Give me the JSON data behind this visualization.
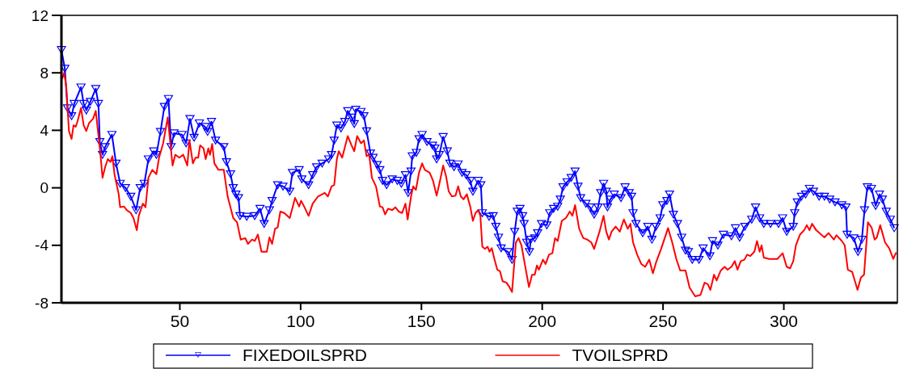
{
  "chart_data": {
    "type": "line",
    "xlim": [
      1,
      347
    ],
    "xticks": [
      50,
      100,
      150,
      200,
      250,
      300
    ],
    "ylim": [
      -8,
      12
    ],
    "yticks": [
      -8,
      -4,
      0,
      4,
      8,
      12
    ],
    "grid": false,
    "legend": "bottom",
    "series": [
      {
        "name": "FIXEDOILSPRD",
        "color": "#0000ff",
        "marker": "triangle",
        "x": [
          1,
          2.4,
          3.5,
          5.2,
          6.3,
          9.1,
          10.2,
          11.3,
          13,
          15.2,
          16.3,
          16.9,
          18,
          19.1,
          21.9,
          23.6,
          25.3,
          27.5,
          29.7,
          31.9,
          33.6,
          35.3,
          37,
          39.2,
          40.3,
          42,
          43.6,
          45.3,
          46.4,
          47.6,
          50.9,
          52.6,
          54.2,
          55.9,
          58.1,
          60.4,
          61.5,
          63.1,
          64.8,
          68.2,
          69.3,
          71,
          72.1,
          73.2,
          74.3,
          74.9,
          77.7,
          81,
          83.2,
          84.9,
          87.1,
          88.2,
          90.5,
          92.7,
          95.5,
          96.6,
          99.4,
          100.5,
          103.3,
          105,
          106.6,
          108.9,
          111.6,
          112.8,
          113.9,
          115,
          116.7,
          118.3,
          119.5,
          121.1,
          122.2,
          122.8,
          125,
          126.2,
          127.3,
          128.9,
          130,
          131.7,
          132.8,
          133.9,
          135.6,
          137.9,
          140,
          141.7,
          143.4,
          144.5,
          145.7,
          146.2,
          147.9,
          149,
          150.3,
          152.3,
          154.6,
          155.6,
          156.3,
          157.4,
          159,
          160.7,
          161.8,
          163.5,
          165.2,
          166.8,
          168.5,
          170.2,
          171.3,
          173.5,
          174.6,
          175.2,
          178,
          179.7,
          180.8,
          181.9,
          183,
          185.8,
          187.5,
          188.6,
          189.7,
          190.8,
          191.9,
          192.5,
          193.6,
          194.7,
          195.3,
          196.9,
          198.1,
          199.7,
          201.9,
          203.1,
          204.7,
          206.4,
          207.5,
          208.6,
          210.3,
          212,
          213.6,
          214.8,
          215.9,
          218.1,
          219.8,
          221.5,
          223.1,
          224.2,
          225.4,
          226.5,
          227,
          228.2,
          229.8,
          232.6,
          234.3,
          236,
          237,
          237.6,
          238.8,
          241.6,
          243.7,
          245.4,
          247.1,
          248.8,
          249.9,
          251.6,
          252.7,
          254.3,
          256,
          257.7,
          259.3,
          260.5,
          262.1,
          264.9,
          266.6,
          269.4,
          270.5,
          272.7,
          275,
          278.3,
          280,
          281.7,
          283.9,
          286.7,
          288.3,
          290,
          291.7,
          294.5,
          297.8,
          299.5,
          301.2,
          303.9,
          304.5,
          305.6,
          307.3,
          309,
          310.6,
          312.3,
          314.6,
          316.8,
          319,
          321.2,
          324,
          325.7,
          326.2,
          329,
          330.7,
          332.3,
          333.4,
          334.6,
          336.3,
          338,
          339.6,
          340.8,
          342.4,
          344.1,
          345.7
        ],
        "values": [
          9.6,
          8.3,
          5.55,
          5.0,
          5.85,
          7.0,
          5.85,
          5.4,
          6.0,
          6.9,
          5.85,
          3.2,
          2.3,
          2.85,
          3.7,
          1.7,
          0.3,
          0.0,
          -0.6,
          -1.55,
          0.0,
          0.3,
          2.0,
          2.55,
          2.3,
          3.9,
          5.65,
          6.2,
          2.85,
          3.8,
          3.7,
          3.1,
          4.8,
          3.5,
          4.5,
          4.25,
          3.9,
          4.6,
          3.3,
          2.85,
          1.8,
          0.95,
          0.0,
          -0.45,
          -0.7,
          -1.95,
          -2.0,
          -1.95,
          -1.45,
          -2.5,
          -1.55,
          -0.9,
          0.2,
          0.1,
          -0.25,
          1.05,
          1.25,
          0.6,
          0.2,
          0.9,
          1.45,
          1.7,
          2.0,
          2.3,
          3.3,
          4.35,
          4.15,
          4.6,
          5.35,
          4.9,
          4.45,
          5.45,
          5.3,
          5.0,
          3.95,
          2.4,
          2.1,
          1.6,
          1.25,
          0.5,
          0.2,
          0.6,
          0.5,
          0.3,
          0.9,
          -0.35,
          1.15,
          2.2,
          2.45,
          3.4,
          3.7,
          3.2,
          2.95,
          2.75,
          2.0,
          2.3,
          3.55,
          2.55,
          1.7,
          1.45,
          1.65,
          1.05,
          0.9,
          0.5,
          -0.25,
          0.5,
          0.2,
          -1.75,
          -2.0,
          -1.95,
          -2.7,
          -3.45,
          -4.2,
          -4.45,
          -5.0,
          -3.05,
          -1.65,
          -1.45,
          -1.95,
          -2.5,
          -3.8,
          -4.45,
          -3.6,
          -3.5,
          -3.15,
          -2.5,
          -2.6,
          -1.75,
          -1.45,
          -1.3,
          -0.8,
          0.05,
          0.4,
          0.7,
          1.15,
          0.1,
          -0.7,
          -1.1,
          -1.35,
          -1.85,
          -1.35,
          -0.35,
          0.3,
          -0.25,
          -1.35,
          -0.8,
          -0.45,
          -0.7,
          0.05,
          -0.35,
          -0.6,
          -1.75,
          -2.5,
          -3.15,
          -2.7,
          -3.6,
          -2.7,
          -2.1,
          -1.2,
          -0.9,
          -0.45,
          -1.85,
          -2.5,
          -3.45,
          -4.35,
          -4.45,
          -5.0,
          -5.0,
          -4.2,
          -4.75,
          -3.7,
          -4.0,
          -3.25,
          -3.35,
          -2.8,
          -3.45,
          -2.7,
          -2.2,
          -1.35,
          -2.1,
          -2.5,
          -2.5,
          -2.5,
          -2.1,
          -3.05,
          -2.7,
          -1.75,
          -1.0,
          -0.6,
          -0.45,
          -0.05,
          -0.25,
          -0.6,
          -0.6,
          -0.8,
          -1.0,
          -1.2,
          -1.35,
          -3.25,
          -3.5,
          -4.45,
          -3.6,
          -1.55,
          0.05,
          -0.05,
          -1.25,
          -0.45,
          -0.8,
          -1.65,
          -2.2,
          -2.8
        ]
      },
      {
        "name": "TVOILSPRD",
        "color": "#ff0000",
        "marker": "none",
        "x": [
          1.3,
          2.1,
          3,
          4.1,
          5.2,
          6,
          6.9,
          7.6,
          9.1,
          10.2,
          11.3,
          12.4,
          14.1,
          15.2,
          16.9,
          17.5,
          18,
          19.1,
          20.2,
          21.3,
          22.1,
          23,
          24.7,
          25.3,
          26.9,
          28,
          29.7,
          30.8,
          32.2,
          33,
          34.7,
          35.8,
          37,
          38.6,
          40.3,
          41.4,
          43.1,
          45,
          47,
          48.1,
          49.8,
          51.4,
          53.1,
          54,
          55.4,
          56.5,
          57.6,
          58.4,
          59.8,
          60.7,
          61.8,
          62.5,
          63.4,
          64.3,
          66,
          68.2,
          69.8,
          72.1,
          73.7,
          75.2,
          77.1,
          78.2,
          79.9,
          81,
          82.3,
          83.8,
          86,
          87.1,
          88.2,
          89.4,
          90.5,
          91.6,
          93.2,
          95.5,
          97.7,
          99.4,
          100.2,
          101.6,
          103.3,
          105,
          107.2,
          108.9,
          110,
          111.3,
          112.8,
          113.9,
          115,
          115.8,
          117.2,
          119.5,
          121.1,
          122.2,
          123.4,
          125,
          126.2,
          127.3,
          128.4,
          129.5,
          131.2,
          132.8,
          133.9,
          135,
          136.2,
          137.9,
          139.2,
          140.6,
          142,
          143.4,
          144.3,
          145.7,
          146.6,
          147.7,
          149,
          150.3,
          151.4,
          153.4,
          154.8,
          156.3,
          157.7,
          159,
          160.2,
          161.3,
          162.6,
          164.1,
          165.2,
          166.3,
          167.4,
          168.8,
          170.2,
          171.3,
          172.4,
          173.5,
          174.4,
          175.2,
          176.3,
          177.4,
          178.2,
          179.1,
          180.2,
          181.4,
          182.5,
          183.6,
          185.2,
          186.4,
          187.5,
          189.1,
          190.2,
          191.4,
          193,
          194.5,
          195.8,
          196.9,
          197.8,
          198.6,
          200.3,
          201.4,
          202.8,
          204.2,
          205.3,
          206.4,
          208.1,
          209.8,
          211.4,
          212.5,
          213.6,
          215.3,
          217,
          218.6,
          220.3,
          221.5,
          223.7,
          225.4,
          226.5,
          227.6,
          228.7,
          230.4,
          232.1,
          233.8,
          235.4,
          236.5,
          237.6,
          239.3,
          241,
          242.6,
          244.3,
          245.8,
          247.1,
          249.3,
          252.1,
          253.8,
          255.5,
          257.1,
          259.3,
          261,
          263.3,
          265.5,
          267.2,
          268.5,
          269.6,
          271.1,
          272.2,
          273.9,
          275.5,
          276.7,
          278.3,
          279.7,
          280.8,
          282.2,
          283.7,
          284.8,
          286.1,
          287.8,
          288.9,
          290,
          290.8,
          291.7,
          293.9,
          297.3,
          299.5,
          301.2,
          302.6,
          303.9,
          305,
          306.7,
          308.4,
          309.5,
          310.6,
          311.7,
          313.4,
          316.8,
          318.5,
          320.7,
          321.8,
          324,
          325.2,
          326.5,
          328.3,
          330.5,
          331.9,
          333.2,
          334.8,
          336.3,
          337.6,
          338.5,
          339.9,
          341.9,
          343.6,
          345.3,
          346.5
        ],
        "values": [
          7.6,
          8.0,
          7.05,
          3.95,
          3.4,
          4.35,
          4.25,
          4.6,
          5.55,
          4.35,
          3.95,
          4.5,
          4.8,
          5.35,
          2.75,
          1.65,
          0.7,
          1.45,
          2.0,
          1.8,
          2.2,
          0.9,
          -0.45,
          -1.35,
          -1.3,
          -1.55,
          -1.75,
          -2.1,
          -2.95,
          -1.95,
          -1.1,
          -1.35,
          0.7,
          1.25,
          0.95,
          2.1,
          3.1,
          4.9,
          1.55,
          2.3,
          2.1,
          2.3,
          1.55,
          3.3,
          1.7,
          2.1,
          2.1,
          2.95,
          2.75,
          2.0,
          2.75,
          2.3,
          3.05,
          1.7,
          1.25,
          1.25,
          -0.6,
          -2.1,
          -2.4,
          -3.6,
          -3.5,
          -3.9,
          -3.6,
          -3.7,
          -3.25,
          -4.45,
          -4.45,
          -3.45,
          -3.9,
          -2.85,
          -2.75,
          -1.65,
          -1.75,
          -2.1,
          -0.7,
          -1.3,
          -0.9,
          -1.35,
          -1.95,
          -1.1,
          -0.6,
          -0.45,
          -0.35,
          -0.6,
          0.1,
          0.2,
          2.0,
          2.55,
          2.1,
          3.6,
          2.95,
          2.55,
          3.6,
          3.1,
          3.3,
          2.2,
          2.3,
          0.7,
          0.1,
          -1.3,
          -1.35,
          -1.85,
          -1.45,
          -1.55,
          -1.35,
          -1.65,
          -1.75,
          -1.1,
          -2.2,
          -0.6,
          0.1,
          -0.15,
          1.05,
          1.7,
          1.25,
          1.05,
          0.5,
          -0.55,
          0.5,
          1.55,
          0.8,
          -0.25,
          -0.6,
          -0.55,
          0.1,
          -0.6,
          -0.8,
          -0.45,
          -1.3,
          -2.3,
          -1.75,
          -1.55,
          -1.95,
          -4.1,
          -4.25,
          -4.1,
          -4.45,
          -4.2,
          -4.95,
          -5.7,
          -5.8,
          -6.5,
          -6.6,
          -6.9,
          -7.25,
          -3.8,
          -3.5,
          -4.0,
          -5.5,
          -6.9,
          -6.05,
          -6.05,
          -5.4,
          -5.7,
          -5.0,
          -5.3,
          -4.65,
          -4.55,
          -3.5,
          -3.7,
          -2.3,
          -2.1,
          -1.65,
          -1.95,
          -1.2,
          -2.85,
          -3.5,
          -3.6,
          -3.8,
          -4.25,
          -3.05,
          -1.95,
          -3.05,
          -3.6,
          -3.05,
          -2.7,
          -3.05,
          -2.2,
          -2.85,
          -2.5,
          -3.8,
          -4.65,
          -5.3,
          -5.5,
          -5.0,
          -5.95,
          -5.2,
          -4.2,
          -2.8,
          -3.8,
          -4.95,
          -5.75,
          -5.75,
          -6.95,
          -7.55,
          -7.45,
          -6.6,
          -6.7,
          -7.1,
          -6.05,
          -6.45,
          -5.75,
          -5.5,
          -5.7,
          -5.5,
          -5.1,
          -5.7,
          -5.1,
          -5.0,
          -4.65,
          -4.75,
          -4.45,
          -3.7,
          -4.45,
          -4.0,
          -4.85,
          -4.95,
          -4.95,
          -4.55,
          -5.5,
          -5.6,
          -5.1,
          -4.0,
          -3.25,
          -2.95,
          -2.6,
          -2.95,
          -2.5,
          -2.95,
          -3.45,
          -3.15,
          -3.6,
          -3.3,
          -3.7,
          -4.0,
          -5.7,
          -5.85,
          -7.1,
          -6.25,
          -6.05,
          -2.4,
          -2.75,
          -3.6,
          -3.45,
          -2.6,
          -3.8,
          -4.2,
          -4.95,
          -4.5
        ]
      }
    ]
  }
}
